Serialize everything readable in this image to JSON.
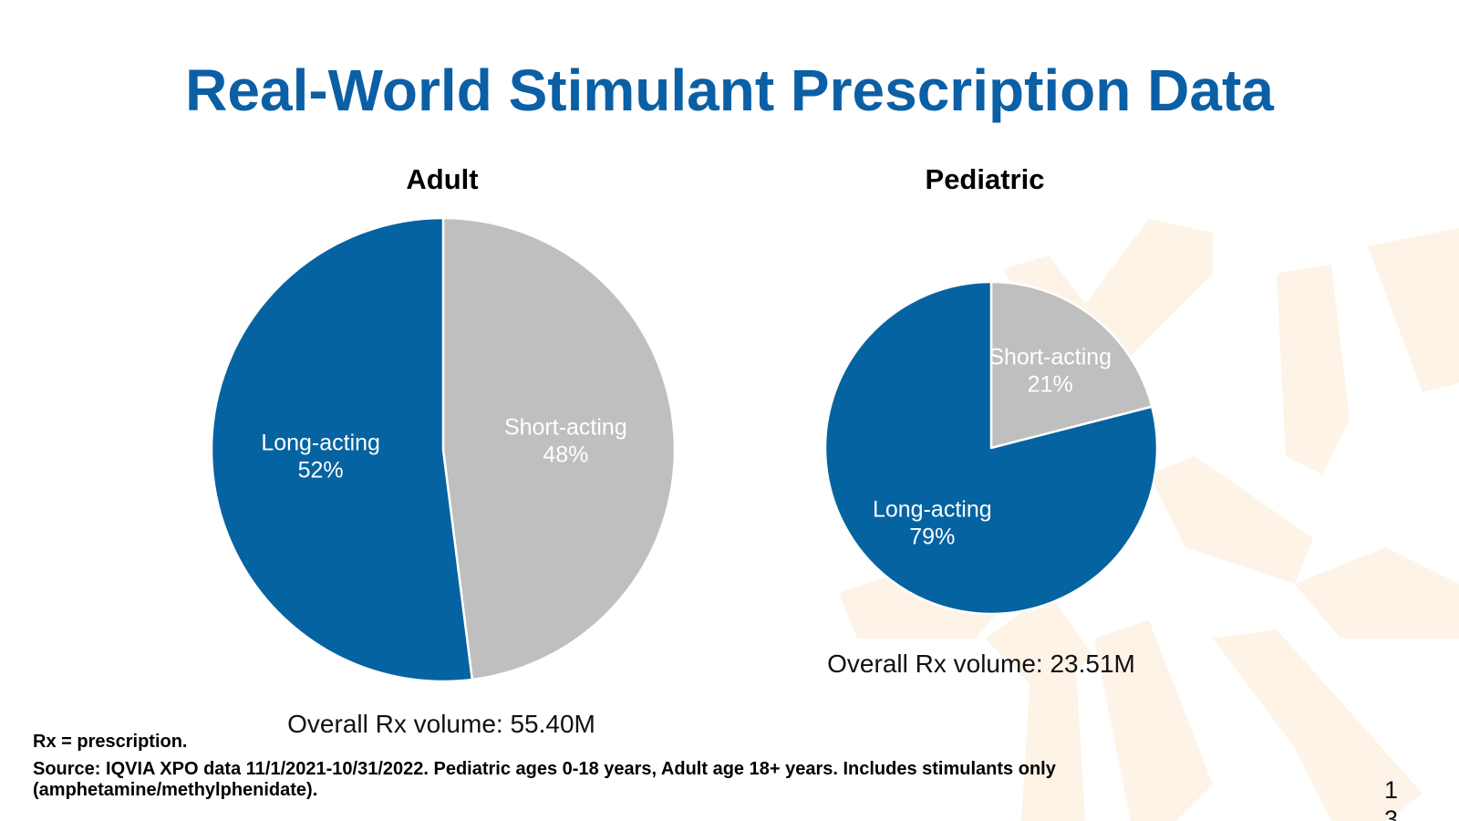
{
  "slide": {
    "title": "Real-World Stimulant Prescription Data",
    "footnote_abbrev": "Rx = prescription.",
    "footnote_source": "Source: IQVIA XPO data 11/1/2021-10/31/2022. Pediatric ages 0-18 years, Adult age 18+ years. Includes stimulants only (amphetamine/methylphenidate).",
    "page_number": "13",
    "colors": {
      "title": "#0b5fa5",
      "long_acting": "#0563a1",
      "short_acting": "#bfbfbf",
      "decor": "#fdf3e7"
    }
  },
  "chart_data": [
    {
      "type": "pie",
      "title": "Adult",
      "slices": [
        {
          "label": "Short-acting",
          "value": 48,
          "display": "48%"
        },
        {
          "label": "Long-acting",
          "value": 52,
          "display": "52%"
        }
      ],
      "caption": "Overall Rx volume: 55.40M"
    },
    {
      "type": "pie",
      "title": "Pediatric",
      "slices": [
        {
          "label": "Short-acting",
          "value": 21,
          "display": "21%"
        },
        {
          "label": "Long-acting",
          "value": 79,
          "display": "79%"
        }
      ],
      "caption": "Overall Rx volume: 23.51M"
    }
  ]
}
